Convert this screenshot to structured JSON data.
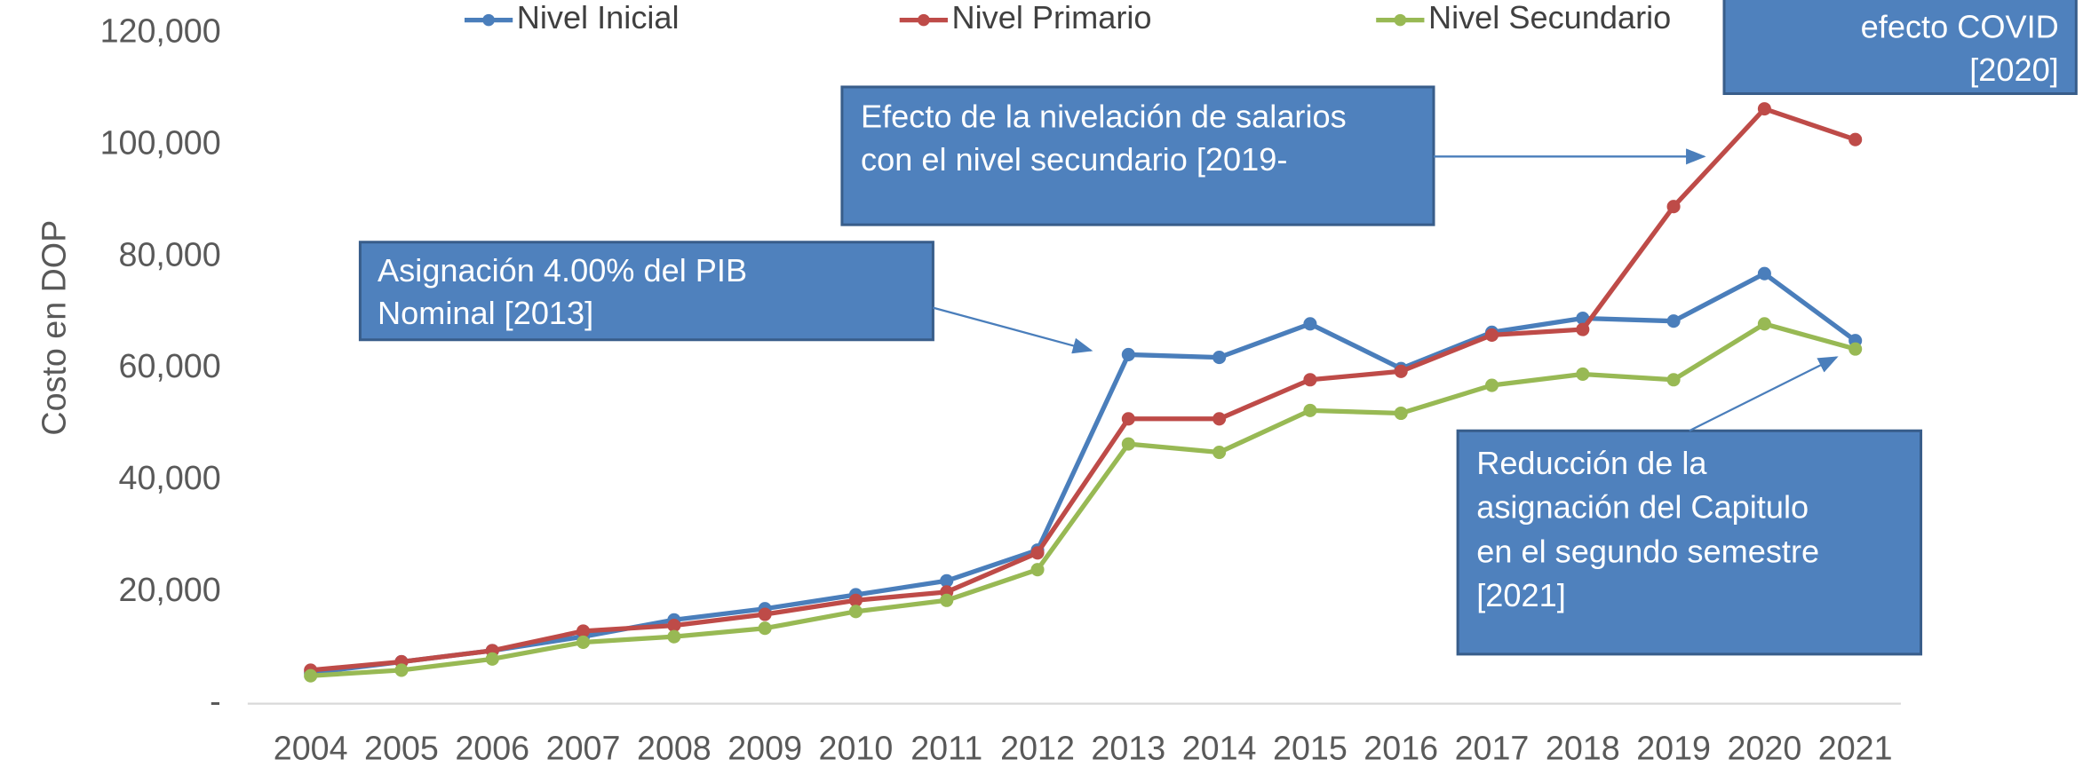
{
  "chart_data": {
    "type": "line",
    "y_label": "Costo en DOP",
    "categories": [
      "2004",
      "2005",
      "2006",
      "2007",
      "2008",
      "2009",
      "2010",
      "2011",
      "2012",
      "2013",
      "2014",
      "2015",
      "2016",
      "2017",
      "2018",
      "2019",
      "2020",
      "2021"
    ],
    "series": [
      {
        "name": "Nivel Inicial",
        "color": "#4a7ebb",
        "values": [
          5500,
          7500,
          9500,
          12000,
          15000,
          17000,
          19500,
          22000,
          27500,
          62500,
          62000,
          68000,
          60000,
          66500,
          69000,
          68500,
          77000,
          65000
        ]
      },
      {
        "name": "Nivel Primario",
        "color": "#be4b48",
        "values": [
          6000,
          7500,
          9500,
          13000,
          14000,
          16000,
          18500,
          20000,
          27000,
          51000,
          51000,
          58000,
          59500,
          66000,
          67000,
          89000,
          106500,
          101000
        ]
      },
      {
        "name": "Nivel Secundario",
        "color": "#98b954",
        "values": [
          5000,
          6000,
          8000,
          11000,
          12000,
          13500,
          16500,
          18500,
          24000,
          46500,
          45000,
          52500,
          52000,
          57000,
          59000,
          58000,
          68000,
          63500
        ]
      }
    ],
    "ylim": [
      0,
      120000
    ],
    "yticks": [
      {
        "value": 0,
        "label": "-"
      },
      {
        "value": 20000,
        "label": "20,000"
      },
      {
        "value": 40000,
        "label": "40,000"
      },
      {
        "value": 60000,
        "label": "60,000"
      },
      {
        "value": 80000,
        "label": "80,000"
      },
      {
        "value": 100000,
        "label": "100,000"
      },
      {
        "value": 120000,
        "label": "120,000"
      }
    ],
    "grid": false,
    "legend": "top",
    "annotations": [
      {
        "lines": [
          "Asignación 4.00% del PIB",
          "Nominal [2013]"
        ]
      },
      {
        "lines": [
          "Efecto de la nivelación de salarios",
          "con el nivel secundario [2019-"
        ]
      },
      {
        "lines": [
          "efecto COVID",
          "[2020]"
        ]
      },
      {
        "lines": [
          "Reducción de la",
          "asignación del Capitulo",
          "en el segundo semestre",
          "[2021]"
        ]
      }
    ]
  }
}
